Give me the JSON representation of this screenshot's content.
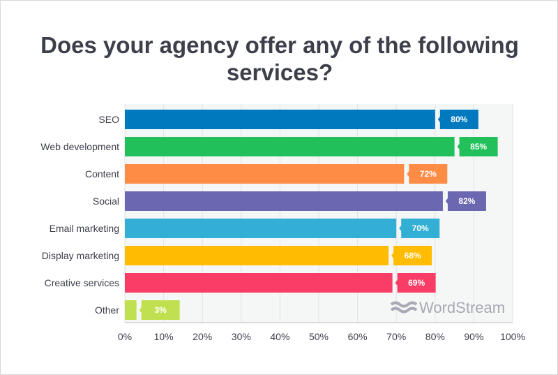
{
  "chart_data": {
    "type": "bar",
    "orientation": "horizontal",
    "title": "Does your agency offer any of the following services?",
    "categories": [
      "SEO",
      "Web development",
      "Content",
      "Social",
      "Email marketing",
      "Display marketing",
      "Creative services",
      "Other"
    ],
    "values": [
      80,
      85,
      72,
      82,
      70,
      68,
      69,
      3
    ],
    "data_labels": [
      "80%",
      "85%",
      "72%",
      "82%",
      "70%",
      "68%",
      "69%",
      "3%"
    ],
    "colors": [
      "#0079bf",
      "#22c05a",
      "#ff8c45",
      "#6b67b0",
      "#33aed4",
      "#ffbc00",
      "#f93d66",
      "#c0e050"
    ],
    "xlim": [
      0,
      100
    ],
    "xticks": [
      "0%",
      "10%",
      "20%",
      "30%",
      "40%",
      "50%",
      "60%",
      "70%",
      "80%",
      "90%",
      "100%"
    ],
    "grid": true,
    "legend": "none"
  },
  "watermark": "WordStream"
}
